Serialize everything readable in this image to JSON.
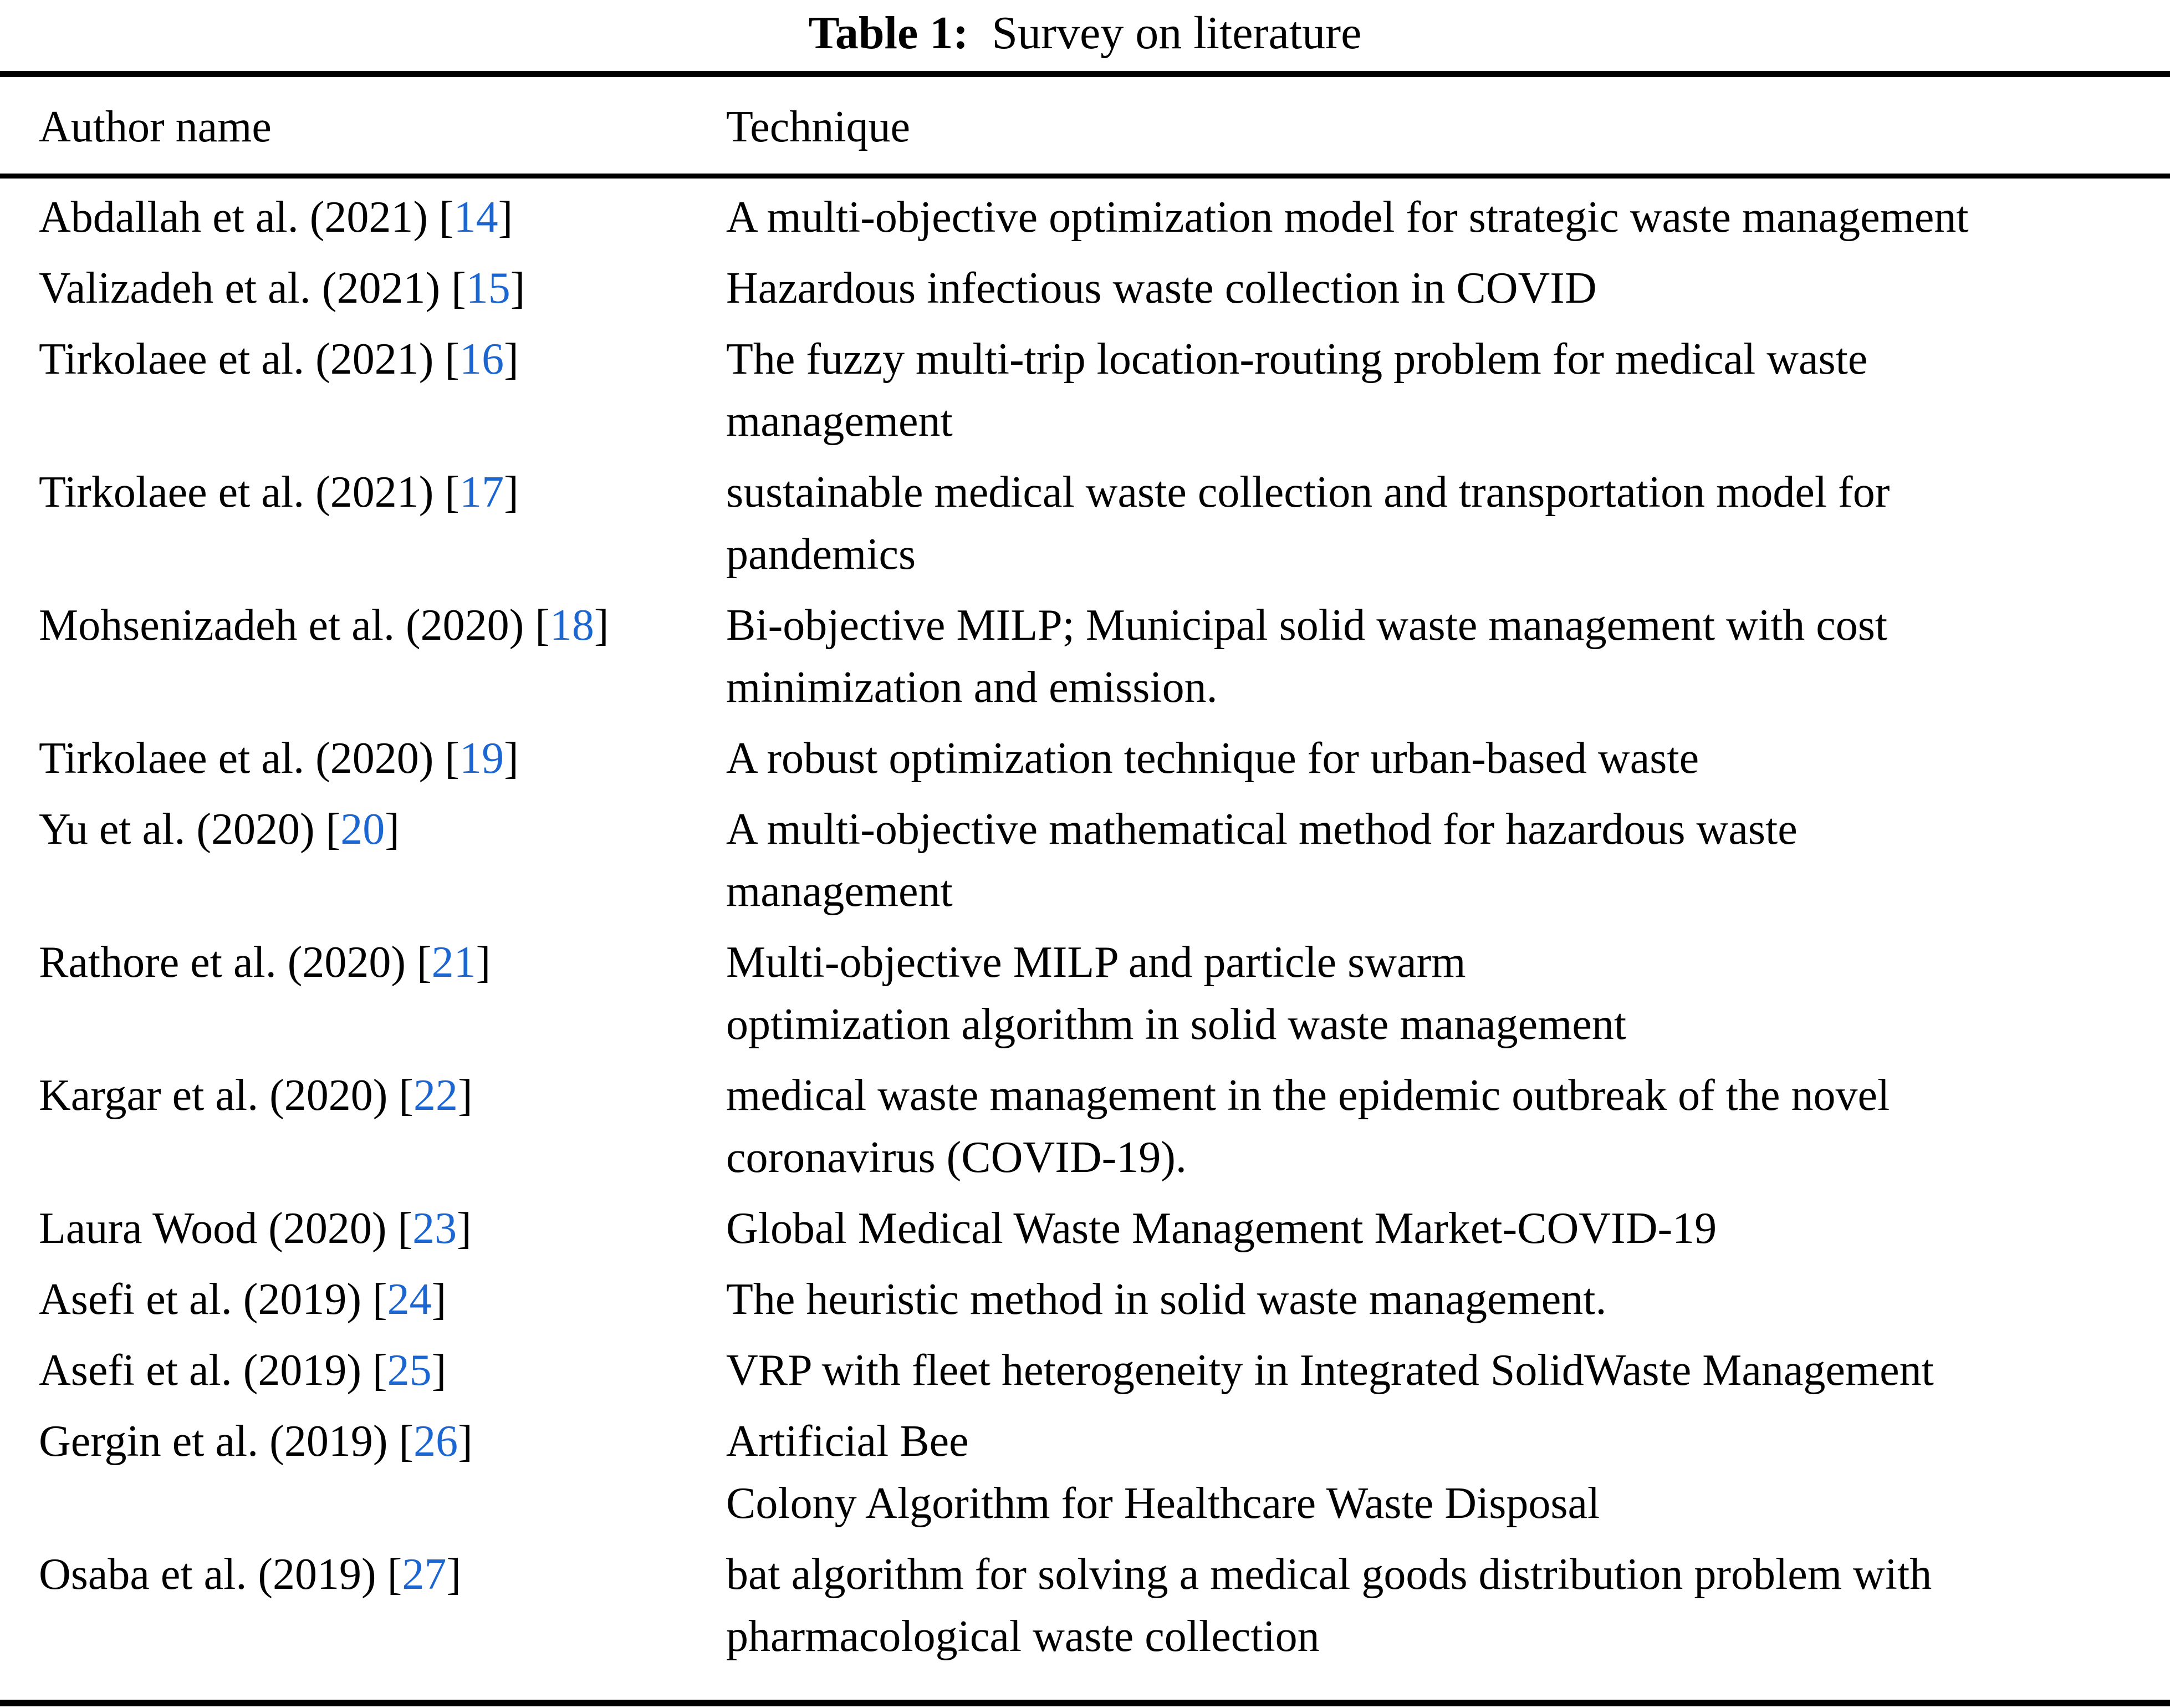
{
  "title": {
    "bold_label": "Table 1:",
    "rest": "  Survey on literature"
  },
  "colors": {
    "citation_blue": "#1c66d2",
    "text_black": "#000000",
    "rule_black": "#000000",
    "background": "#ffffff"
  },
  "table": {
    "columns": [
      {
        "label": "Author name"
      },
      {
        "label": "Technique"
      }
    ],
    "rows": [
      {
        "author_prefix": "Abdallah et al. (2021) ",
        "ref": "14",
        "technique": "A multi-objective optimization model for strategic waste management"
      },
      {
        "author_prefix": "Valizadeh et al. (2021) ",
        "ref": "15",
        "technique": "Hazardous infectious waste collection in COVID"
      },
      {
        "author_prefix": "Tirkolaee et al. (2021) ",
        "ref": "16",
        "technique": "The fuzzy multi-trip location-routing problem for medical waste\nmanagement"
      },
      {
        "author_prefix": "Tirkolaee et al. (2021) ",
        "ref": "17",
        "technique": "sustainable medical waste collection and transportation model for\npandemics"
      },
      {
        "author_prefix": "Mohsenizadeh et al. (2020) ",
        "ref": "18",
        "technique": "Bi-objective MILP; Municipal solid waste management with cost\nminimization and emission."
      },
      {
        "author_prefix": "Tirkolaee et al. (2020) ",
        "ref": "19",
        "technique": "A robust optimization technique for urban-based waste"
      },
      {
        "author_prefix": "Yu et al. (2020) ",
        "ref": "20",
        "technique": "A multi-objective mathematical method for hazardous waste\nmanagement"
      },
      {
        "author_prefix": "Rathore et al. (2020) ",
        "ref": "21",
        "technique": "Multi-objective MILP and particle swarm\noptimization algorithm in solid waste management"
      },
      {
        "author_prefix": "Kargar et al. (2020) ",
        "ref": "22",
        "technique": "medical waste management in the epidemic outbreak of the novel\ncoronavirus (COVID-19)."
      },
      {
        "author_prefix": "Laura Wood (2020) ",
        "ref": "23",
        "technique": "Global Medical Waste Management Market-COVID-19"
      },
      {
        "author_prefix": "Asefi et al. (2019) ",
        "ref": "24",
        "technique": "The heuristic method in solid waste management."
      },
      {
        "author_prefix": "Asefi et al. (2019) ",
        "ref": "25",
        "technique": "VRP with fleet heterogeneity in Integrated SolidWaste Management"
      },
      {
        "author_prefix": "Gergin et al. (2019) ",
        "ref": "26",
        "technique": "Artificial Bee\nColony Algorithm for Healthcare Waste Disposal"
      },
      {
        "author_prefix": "Osaba et al. (2019) ",
        "ref": "27",
        "technique": "bat algorithm for solving a medical goods distribution problem with\npharmacological waste collection"
      }
    ]
  }
}
